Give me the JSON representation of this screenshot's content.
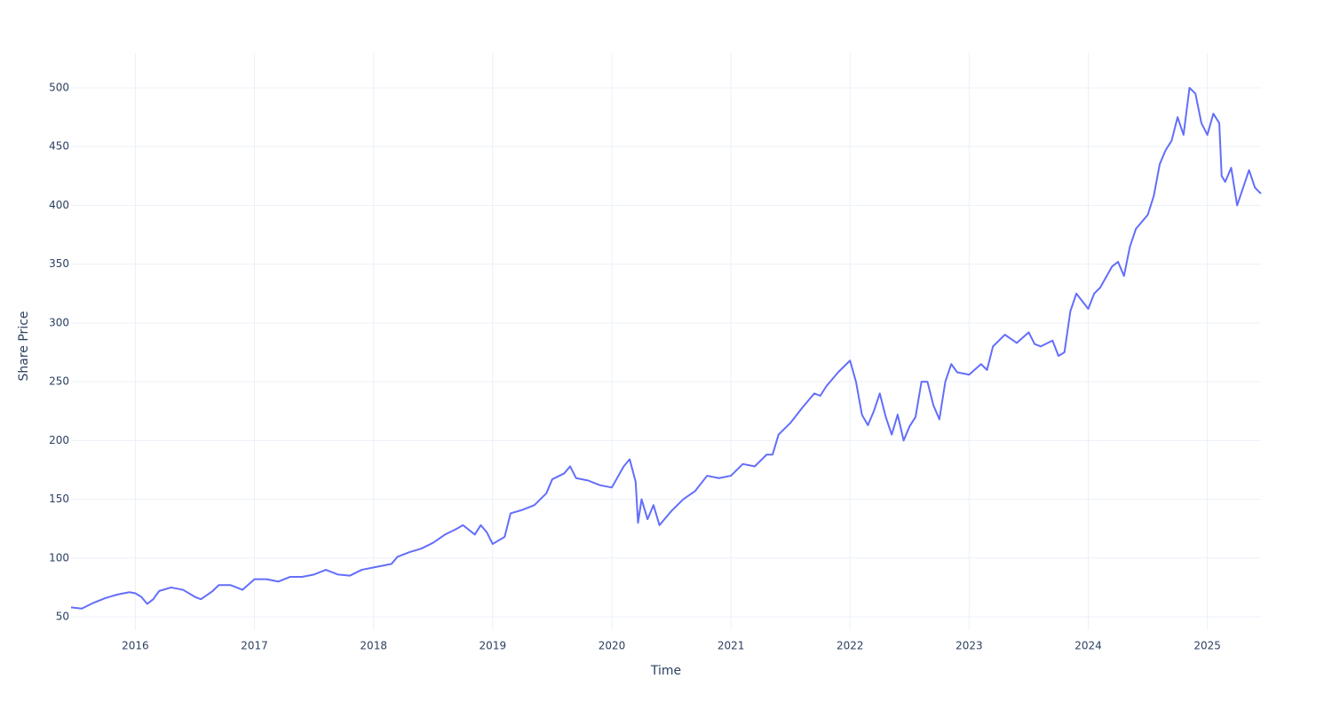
{
  "chart_data": {
    "type": "line",
    "xlabel": "Time",
    "ylabel": "Share Price",
    "x": [
      2015.46,
      2015.55,
      2015.65,
      2015.75,
      2015.85,
      2015.95,
      2016.0,
      2016.05,
      2016.1,
      2016.15,
      2016.2,
      2016.3,
      2016.4,
      2016.5,
      2016.55,
      2016.65,
      2016.7,
      2016.8,
      2016.9,
      2017.0,
      2017.1,
      2017.2,
      2017.3,
      2017.4,
      2017.5,
      2017.6,
      2017.7,
      2017.8,
      2017.9,
      2018.0,
      2018.1,
      2018.15,
      2018.2,
      2018.3,
      2018.4,
      2018.5,
      2018.6,
      2018.7,
      2018.75,
      2018.8,
      2018.85,
      2018.9,
      2018.95,
      2019.0,
      2019.05,
      2019.1,
      2019.15,
      2019.25,
      2019.35,
      2019.45,
      2019.5,
      2019.6,
      2019.65,
      2019.7,
      2019.8,
      2019.9,
      2020.0,
      2020.1,
      2020.15,
      2020.2,
      2020.22,
      2020.25,
      2020.3,
      2020.35,
      2020.4,
      2020.5,
      2020.6,
      2020.7,
      2020.8,
      2020.9,
      2021.0,
      2021.1,
      2021.2,
      2021.3,
      2021.35,
      2021.4,
      2021.5,
      2021.6,
      2021.7,
      2021.75,
      2021.8,
      2021.9,
      2022.0,
      2022.05,
      2022.1,
      2022.15,
      2022.2,
      2022.25,
      2022.3,
      2022.35,
      2022.4,
      2022.45,
      2022.5,
      2022.55,
      2022.6,
      2022.65,
      2022.7,
      2022.75,
      2022.8,
      2022.85,
      2022.9,
      2023.0,
      2023.1,
      2023.15,
      2023.2,
      2023.3,
      2023.4,
      2023.5,
      2023.55,
      2023.6,
      2023.7,
      2023.75,
      2023.8,
      2023.85,
      2023.9,
      2024.0,
      2024.05,
      2024.1,
      2024.2,
      2024.25,
      2024.3,
      2024.35,
      2024.4,
      2024.5,
      2024.55,
      2024.6,
      2024.65,
      2024.7,
      2024.75,
      2024.8,
      2024.85,
      2024.9,
      2024.95,
      2025.0,
      2025.05,
      2025.1,
      2025.12,
      2025.15,
      2025.2,
      2025.25,
      2025.3,
      2025.35,
      2025.4,
      2025.45
    ],
    "values": [
      58,
      57,
      62,
      66,
      69,
      71,
      70,
      67,
      61,
      65,
      72,
      75,
      73,
      67,
      65,
      72,
      77,
      77,
      73,
      82,
      82,
      80,
      84,
      84,
      86,
      90,
      86,
      85,
      90,
      92,
      94,
      95,
      101,
      105,
      108,
      113,
      120,
      125,
      128,
      124,
      120,
      128,
      122,
      112,
      115,
      118,
      138,
      141,
      145,
      155,
      167,
      172,
      178,
      168,
      166,
      162,
      160,
      178,
      184,
      165,
      130,
      150,
      133,
      145,
      128,
      140,
      150,
      157,
      170,
      168,
      170,
      180,
      178,
      188,
      188,
      205,
      215,
      228,
      240,
      238,
      246,
      258,
      268,
      250,
      222,
      213,
      225,
      240,
      220,
      205,
      222,
      200,
      212,
      220,
      250,
      250,
      230,
      218,
      250,
      265,
      258,
      256,
      265,
      260,
      280,
      290,
      283,
      292,
      282,
      280,
      285,
      272,
      275,
      310,
      325,
      312,
      325,
      330,
      348,
      352,
      340,
      365,
      380,
      392,
      408,
      435,
      447,
      455,
      475,
      460,
      500,
      495,
      470,
      460,
      478,
      470,
      425,
      420,
      432,
      400,
      415,
      430,
      415,
      410
    ],
    "color": "#636efa",
    "xlim": [
      2015.46,
      2025.45
    ],
    "xticks": [
      2016,
      2017,
      2018,
      2019,
      2020,
      2021,
      2022,
      2023,
      2024,
      2025
    ],
    "ylim": [
      38.7,
      529.4
    ],
    "yticks": [
      50,
      100,
      150,
      200,
      250,
      300,
      350,
      400,
      450,
      500
    ],
    "grid": true
  }
}
